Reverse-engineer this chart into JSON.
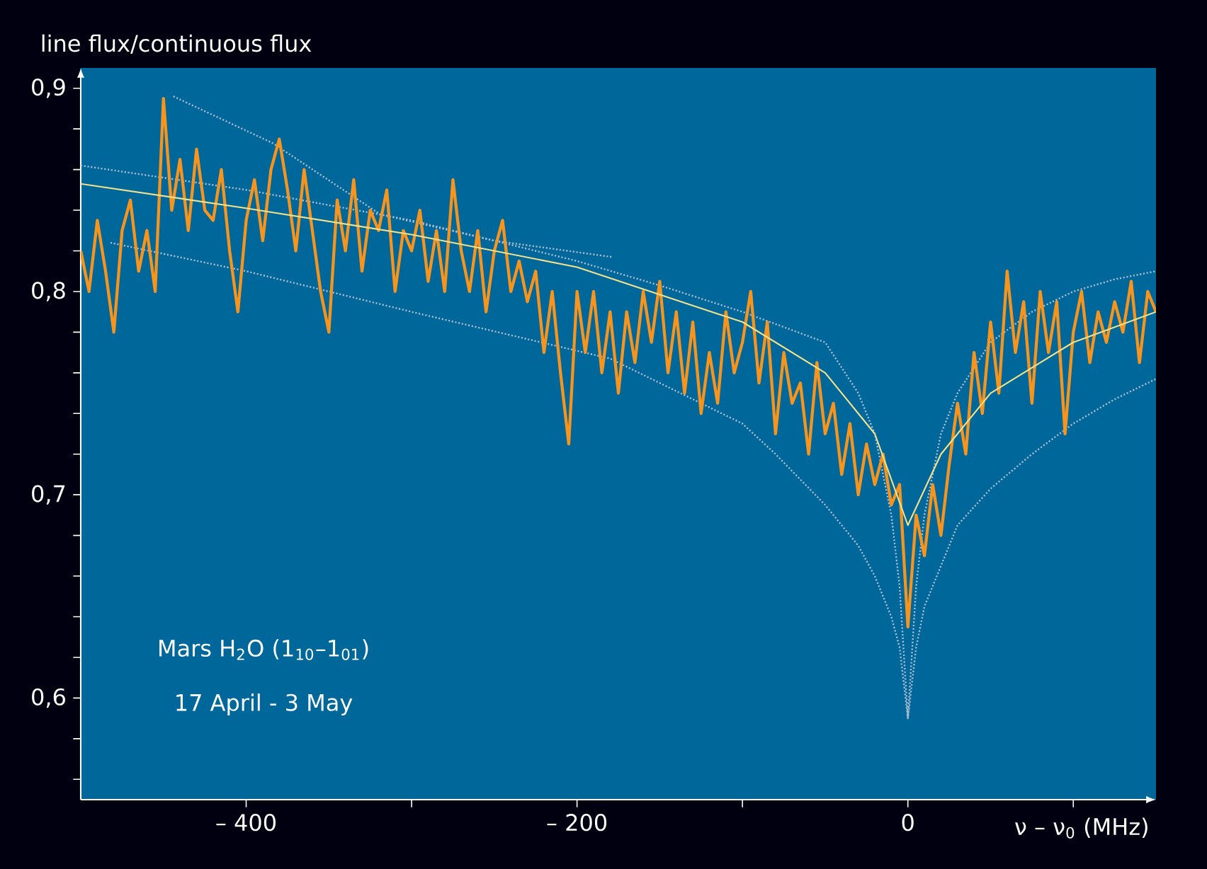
{
  "chart_data": {
    "type": "line",
    "ylabel": "line flux/continuous flux",
    "xlabel": "ν – ν$_{0}$ (MHz)",
    "annotations": [
      "Mars H$_{2}$O (1$_{10}$–1$_{01}$)",
      "17 April - 3 May"
    ],
    "xlim": [
      -500,
      150
    ],
    "ylim": [
      0.55,
      0.91
    ],
    "xticks": [
      {
        "value": -400,
        "label": "– 400"
      },
      {
        "value": -300,
        "label": null
      },
      {
        "value": -200,
        "label": "– 200"
      },
      {
        "value": -100,
        "label": null
      },
      {
        "value": 0,
        "label": "0"
      },
      {
        "value": 100,
        "label": null
      }
    ],
    "yticks": [
      {
        "value": 0.56,
        "label": null
      },
      {
        "value": 0.58,
        "label": null
      },
      {
        "value": 0.6,
        "label": "0,6"
      },
      {
        "value": 0.62,
        "label": null
      },
      {
        "value": 0.64,
        "label": null
      },
      {
        "value": 0.66,
        "label": null
      },
      {
        "value": 0.68,
        "label": null
      },
      {
        "value": 0.7,
        "label": "0,7"
      },
      {
        "value": 0.72,
        "label": null
      },
      {
        "value": 0.74,
        "label": null
      },
      {
        "value": 0.76,
        "label": null
      },
      {
        "value": 0.78,
        "label": null
      },
      {
        "value": 0.8,
        "label": "0,8"
      },
      {
        "value": 0.82,
        "label": null
      },
      {
        "value": 0.84,
        "label": null
      },
      {
        "value": 0.86,
        "label": null
      },
      {
        "value": 0.88,
        "label": null
      },
      {
        "value": 0.9,
        "label": "0,9"
      }
    ],
    "grid": false,
    "series": [
      {
        "color": "#a9bccf",
        "line_style": "dotted",
        "x": [
          -500,
          -400,
          -300,
          -200,
          -150,
          -100,
          -50,
          -30,
          -20,
          -10,
          -5,
          0,
          5,
          10,
          20,
          30,
          50,
          75,
          100,
          125,
          150
        ],
        "values": [
          0.862,
          0.85,
          0.835,
          0.815,
          0.803,
          0.79,
          0.775,
          0.75,
          0.73,
          0.69,
          0.655,
          0.59,
          0.655,
          0.69,
          0.73,
          0.75,
          0.775,
          0.79,
          0.8,
          0.806,
          0.81
        ]
      },
      {
        "color": "#a9bccf",
        "line_style": "dotted",
        "x": [
          -482,
          -400,
          -300,
          -180,
          -100,
          -80,
          -50,
          -30,
          -20,
          -10,
          -5,
          0,
          5,
          10,
          20,
          30,
          50,
          75,
          100,
          125,
          150
        ],
        "values": [
          0.824,
          0.81,
          0.79,
          0.767,
          0.735,
          0.72,
          0.695,
          0.675,
          0.66,
          0.64,
          0.625,
          0.59,
          0.625,
          0.645,
          0.665,
          0.685,
          0.703,
          0.72,
          0.735,
          0.747,
          0.757
        ]
      },
      {
        "color": "#a9bccf",
        "line_style": "dotted",
        "x": [
          -444,
          -384,
          -319,
          -250,
          -179
        ],
        "values": [
          0.896,
          0.873,
          0.838,
          0.825,
          0.817
        ]
      },
      {
        "color": "#f7941d",
        "line_style": "solid",
        "x": [
          -500,
          -495,
          -490,
          -485,
          -480,
          -475,
          -470,
          -465,
          -460,
          -455,
          -450,
          -445,
          -440,
          -435,
          -430,
          -425,
          -420,
          -415,
          -410,
          -405,
          -400,
          -395,
          -390,
          -385,
          -380,
          -375,
          -370,
          -365,
          -360,
          -355,
          -350,
          -345,
          -340,
          -335,
          -330,
          -325,
          -320,
          -315,
          -310,
          -305,
          -300,
          -295,
          -290,
          -285,
          -280,
          -275,
          -270,
          -265,
          -260,
          -255,
          -250,
          -245,
          -240,
          -235,
          -230,
          -225,
          -220,
          -215,
          -210,
          -205,
          -200,
          -195,
          -190,
          -185,
          -180,
          -175,
          -170,
          -165,
          -160,
          -155,
          -150,
          -145,
          -140,
          -135,
          -130,
          -125,
          -120,
          -115,
          -110,
          -105,
          -100,
          -95,
          -90,
          -85,
          -80,
          -75,
          -70,
          -65,
          -60,
          -55,
          -50,
          -45,
          -40,
          -35,
          -30,
          -25,
          -20,
          -15,
          -10,
          -5,
          0,
          5,
          10,
          15,
          20,
          25,
          30,
          35,
          40,
          45,
          50,
          55,
          60,
          65,
          70,
          75,
          80,
          85,
          90,
          95,
          100,
          105,
          110,
          115,
          120,
          125,
          130,
          135,
          140,
          145,
          150
        ],
        "values": [
          0.82,
          0.8,
          0.835,
          0.81,
          0.78,
          0.83,
          0.845,
          0.81,
          0.83,
          0.8,
          0.895,
          0.84,
          0.865,
          0.83,
          0.87,
          0.84,
          0.835,
          0.86,
          0.82,
          0.79,
          0.835,
          0.855,
          0.825,
          0.86,
          0.875,
          0.85,
          0.82,
          0.86,
          0.83,
          0.8,
          0.78,
          0.845,
          0.82,
          0.855,
          0.81,
          0.84,
          0.83,
          0.85,
          0.8,
          0.83,
          0.82,
          0.84,
          0.805,
          0.83,
          0.8,
          0.855,
          0.82,
          0.8,
          0.83,
          0.79,
          0.82,
          0.835,
          0.8,
          0.815,
          0.795,
          0.81,
          0.77,
          0.8,
          0.76,
          0.725,
          0.8,
          0.77,
          0.8,
          0.76,
          0.79,
          0.75,
          0.79,
          0.765,
          0.8,
          0.775,
          0.805,
          0.76,
          0.79,
          0.75,
          0.785,
          0.74,
          0.77,
          0.745,
          0.79,
          0.76,
          0.775,
          0.8,
          0.755,
          0.785,
          0.73,
          0.77,
          0.745,
          0.755,
          0.72,
          0.765,
          0.73,
          0.745,
          0.71,
          0.735,
          0.7,
          0.725,
          0.705,
          0.72,
          0.695,
          0.705,
          0.635,
          0.69,
          0.67,
          0.705,
          0.68,
          0.715,
          0.745,
          0.72,
          0.77,
          0.74,
          0.785,
          0.75,
          0.81,
          0.77,
          0.795,
          0.745,
          0.8,
          0.77,
          0.795,
          0.73,
          0.78,
          0.8,
          0.765,
          0.79,
          0.775,
          0.795,
          0.78,
          0.805,
          0.765,
          0.8,
          0.79
        ]
      },
      {
        "color": "#f2e08c",
        "line_style": "solid",
        "x": [
          -500,
          -400,
          -300,
          -200,
          -100,
          -50,
          -20,
          0,
          20,
          50,
          100,
          150
        ],
        "values": [
          0.853,
          0.841,
          0.828,
          0.812,
          0.785,
          0.76,
          0.73,
          0.685,
          0.72,
          0.75,
          0.775,
          0.79
        ]
      }
    ]
  }
}
